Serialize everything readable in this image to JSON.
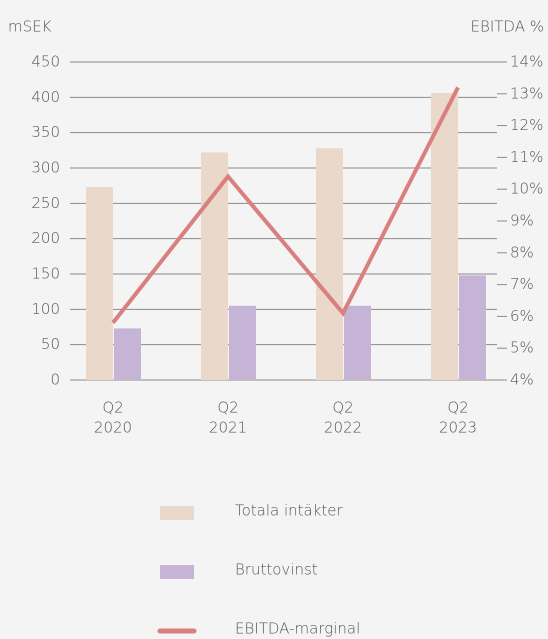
{
  "chart_data": {
    "type": "bar",
    "ylabel": "mSEK",
    "y2label": "EBITDA %",
    "categories": [
      [
        "Q2",
        "2020"
      ],
      [
        "Q2",
        "2021"
      ],
      [
        "Q2",
        "2022"
      ],
      [
        "Q2",
        "2023"
      ]
    ],
    "series": [
      {
        "name": "Totala intäkter",
        "color": "#ead8ca",
        "type": "bar",
        "values": [
          273,
          322,
          328,
          406
        ]
      },
      {
        "name": "Bruttovinst",
        "color": "#c5b4d6",
        "type": "bar",
        "values": [
          73,
          105,
          105,
          148
        ]
      },
      {
        "name": "EBITDA-marginal",
        "color": "#d9807e",
        "type": "line",
        "axis": "y2",
        "values": [
          5.8,
          10.4,
          6.1,
          13.2
        ]
      }
    ],
    "ylim": [
      0,
      450
    ],
    "yticks": [
      0,
      50,
      100,
      150,
      200,
      250,
      300,
      350,
      400,
      450
    ],
    "y2lim": [
      4,
      14
    ],
    "y2ticks": [
      {
        "value": 4,
        "label": "4%"
      },
      {
        "value": 5,
        "label": "5%"
      },
      {
        "value": 6,
        "label": "6%"
      },
      {
        "value": 7,
        "label": "7%"
      },
      {
        "value": 8,
        "label": "8%"
      },
      {
        "value": 9,
        "label": "9%"
      },
      {
        "value": 10,
        "label": "10%"
      },
      {
        "value": 11,
        "label": "11%"
      },
      {
        "value": 12,
        "label": "12%"
      },
      {
        "value": 13,
        "label": "13%"
      },
      {
        "value": 14,
        "label": "14%"
      }
    ],
    "grid": true
  }
}
